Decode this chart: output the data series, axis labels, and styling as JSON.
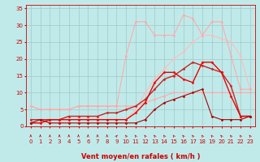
{
  "xlabel": "Vent moyen/en rafales ( km/h )",
  "bg_color": "#c0eaea",
  "grid_color": "#a0c8c8",
  "xlim": [
    -0.5,
    23.5
  ],
  "ylim": [
    0,
    36
  ],
  "yticks": [
    0,
    5,
    10,
    15,
    20,
    25,
    30,
    35
  ],
  "xticks": [
    0,
    1,
    2,
    3,
    4,
    5,
    6,
    7,
    8,
    9,
    10,
    11,
    12,
    13,
    14,
    15,
    16,
    17,
    18,
    19,
    20,
    21,
    22,
    23
  ],
  "series": [
    {
      "x": [
        0,
        1,
        2,
        3,
        4,
        5,
        6,
        7,
        8,
        9,
        10,
        11,
        12,
        13,
        14,
        15,
        16,
        17,
        18,
        19,
        20,
        21,
        22,
        23
      ],
      "y": [
        1,
        1,
        1,
        1,
        2,
        2,
        2,
        2,
        2,
        2,
        2,
        5,
        10,
        14,
        17,
        20,
        22,
        25,
        27,
        27,
        26,
        25,
        21,
        11
      ],
      "color": "#ffbbbb",
      "lw": 0.8,
      "marker": "D",
      "ms": 1.5
    },
    {
      "x": [
        0,
        1,
        2,
        3,
        4,
        5,
        6,
        7,
        8,
        9,
        10,
        11,
        12,
        13,
        14,
        15,
        16,
        17,
        18,
        19,
        20,
        21,
        22,
        23
      ],
      "y": [
        6,
        5,
        5,
        5,
        5,
        6,
        6,
        6,
        6,
        6,
        21,
        31,
        31,
        27,
        27,
        27,
        33,
        32,
        27,
        31,
        31,
        21,
        11,
        11
      ],
      "color": "#ffaaaa",
      "lw": 0.8,
      "marker": "D",
      "ms": 1.5
    },
    {
      "x": [
        0,
        1,
        2,
        3,
        4,
        5,
        6,
        7,
        8,
        9,
        10,
        11,
        12,
        13,
        14,
        15,
        16,
        17,
        18,
        19,
        20,
        21,
        22,
        23
      ],
      "y": [
        6,
        5,
        5,
        5,
        5,
        6,
        6,
        6,
        6,
        6,
        6,
        6,
        7,
        8,
        9,
        10,
        10,
        10,
        10,
        10,
        10,
        10,
        10,
        10
      ],
      "color": "#ffaaaa",
      "lw": 0.8,
      "marker": "D",
      "ms": 1.5
    },
    {
      "x": [
        0,
        1,
        2,
        3,
        4,
        5,
        6,
        7,
        8,
        9,
        10,
        11,
        12,
        13,
        14,
        15,
        16,
        17,
        18,
        19,
        20,
        21,
        22,
        23
      ],
      "y": [
        2,
        2,
        2,
        2,
        3,
        3,
        3,
        3,
        4,
        4,
        5,
        6,
        8,
        11,
        14,
        15,
        17,
        19,
        18,
        17,
        16,
        12,
        3,
        3
      ],
      "color": "#cc2222",
      "lw": 1.0,
      "marker": "D",
      "ms": 1.5
    },
    {
      "x": [
        0,
        1,
        2,
        3,
        4,
        5,
        6,
        7,
        8,
        9,
        10,
        11,
        12,
        13,
        14,
        15,
        16,
        17,
        18,
        19,
        20,
        21,
        22,
        23
      ],
      "y": [
        1,
        1,
        2,
        2,
        2,
        2,
        2,
        2,
        2,
        2,
        2,
        4,
        7,
        13,
        16,
        16,
        14,
        13,
        19,
        19,
        16,
        9,
        3,
        3
      ],
      "color": "#ee0000",
      "lw": 1.0,
      "marker": "D",
      "ms": 1.5
    },
    {
      "x": [
        0,
        1,
        2,
        3,
        4,
        5,
        6,
        7,
        8,
        9,
        10,
        11,
        12,
        13,
        14,
        15,
        16,
        17,
        18,
        19,
        20,
        21,
        22,
        23
      ],
      "y": [
        1,
        2,
        1,
        1,
        1,
        1,
        1,
        1,
        1,
        1,
        1,
        1,
        2,
        5,
        7,
        8,
        9,
        10,
        11,
        3,
        2,
        2,
        2,
        3
      ],
      "color": "#aa0000",
      "lw": 0.8,
      "marker": "D",
      "ms": 1.5
    }
  ],
  "arrow_angles": [
    90,
    90,
    90,
    90,
    90,
    90,
    90,
    90,
    90,
    45,
    135,
    135,
    135,
    135,
    135,
    135,
    135,
    135,
    135,
    135,
    135,
    135,
    135,
    135
  ]
}
